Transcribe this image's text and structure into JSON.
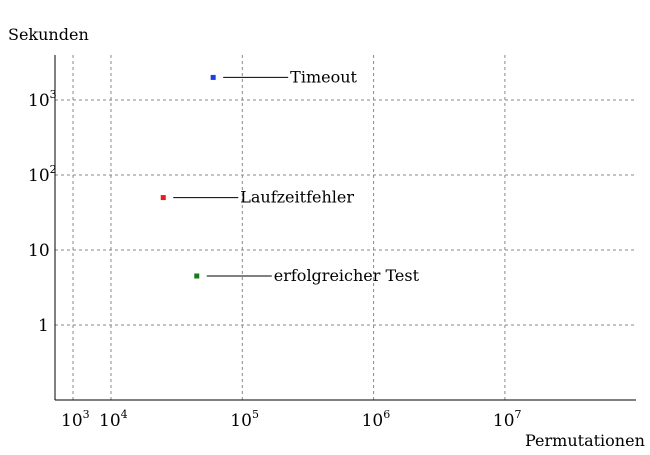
{
  "chart_data": {
    "type": "scatter",
    "xlabel": "Permutationen",
    "ylabel": "Sekunden",
    "x_scale": "log",
    "y_scale": "log",
    "grid": true,
    "x_ticks": [
      {
        "value": 1000,
        "base": "10",
        "exp": "3"
      },
      {
        "value": 10000,
        "base": "10",
        "exp": "4"
      },
      {
        "value": 100000,
        "base": "10",
        "exp": "5"
      },
      {
        "value": 1000000,
        "base": "10",
        "exp": "6"
      },
      {
        "value": 10000000,
        "base": "10",
        "exp": "7"
      }
    ],
    "y_ticks": [
      {
        "value": 1,
        "base": "1",
        "exp": ""
      },
      {
        "value": 10,
        "base": "10",
        "exp": ""
      },
      {
        "value": 100,
        "base": "10",
        "exp": "2"
      },
      {
        "value": 1000,
        "base": "10",
        "exp": "3"
      }
    ],
    "points": [
      {
        "label": "Timeout",
        "x": 60000,
        "y": 2000,
        "color": "#1a3ee8"
      },
      {
        "label": "Laufzeitfehler",
        "x": 25000,
        "y": 50,
        "color": "#e81a1a"
      },
      {
        "label": "erfolgreicher Test",
        "x": 45000,
        "y": 4.5,
        "color": "#1a7a1a"
      }
    ]
  }
}
